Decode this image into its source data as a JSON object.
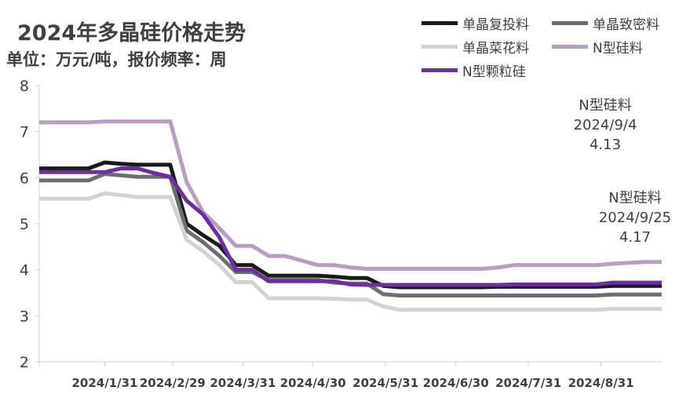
{
  "chart_data": {
    "type": "line",
    "title": "2024年多晶硅价格走势",
    "subtitle": "单位：万元/吨，报价频率：周",
    "ylim": [
      2,
      8
    ],
    "yticks": [
      2,
      3,
      4,
      5,
      6,
      7,
      8
    ],
    "x": [
      "2024/1/3",
      "2024/1/10",
      "2024/1/17",
      "2024/1/24",
      "2024/1/31",
      "2024/2/7",
      "2024/2/14",
      "2024/2/21",
      "2024/2/28",
      "2024/3/6",
      "2024/3/13",
      "2024/3/20",
      "2024/3/27",
      "2024/4/3",
      "2024/4/10",
      "2024/4/17",
      "2024/4/24",
      "2024/5/1",
      "2024/5/8",
      "2024/5/15",
      "2024/5/22",
      "2024/5/29",
      "2024/6/5",
      "2024/6/12",
      "2024/6/19",
      "2024/6/26",
      "2024/7/3",
      "2024/7/10",
      "2024/7/17",
      "2024/7/24",
      "2024/7/31",
      "2024/8/7",
      "2024/8/14",
      "2024/8/21",
      "2024/8/28",
      "2024/9/4",
      "2024/9/11",
      "2024/9/18",
      "2024/9/25"
    ],
    "xtick_labels": [
      "2024/1/31",
      "2024/2/29",
      "2024/3/31",
      "2024/4/30",
      "2024/5/31",
      "2024/6/30",
      "2024/7/31",
      "2024/8/31"
    ],
    "xtick_positions": [
      4,
      8.14,
      12.43,
      16.71,
      21.14,
      25.43,
      29.86,
      34.29
    ],
    "series": [
      {
        "name": "单晶复投料",
        "color": "#1a1a1a",
        "values": [
          6.2,
          6.2,
          6.2,
          6.2,
          6.33,
          6.3,
          6.28,
          6.28,
          6.28,
          5.0,
          4.75,
          4.52,
          4.1,
          4.1,
          3.87,
          3.87,
          3.87,
          3.87,
          3.85,
          3.82,
          3.82,
          3.65,
          3.62,
          3.62,
          3.62,
          3.62,
          3.62,
          3.62,
          3.63,
          3.63,
          3.63,
          3.63,
          3.63,
          3.63,
          3.63,
          3.65,
          3.65,
          3.65,
          3.65
        ]
      },
      {
        "name": "单晶致密料",
        "color": "#6e6e6e",
        "values": [
          5.94,
          5.94,
          5.94,
          5.94,
          6.08,
          6.05,
          6.02,
          6.02,
          6.02,
          4.85,
          4.6,
          4.3,
          3.95,
          3.95,
          3.78,
          3.78,
          3.78,
          3.78,
          3.72,
          3.7,
          3.7,
          3.47,
          3.44,
          3.44,
          3.44,
          3.44,
          3.44,
          3.44,
          3.44,
          3.44,
          3.44,
          3.44,
          3.44,
          3.44,
          3.44,
          3.46,
          3.46,
          3.46,
          3.46
        ]
      },
      {
        "name": "单晶菜花料",
        "color": "#d2d2d2",
        "values": [
          5.54,
          5.54,
          5.54,
          5.54,
          5.66,
          5.62,
          5.58,
          5.58,
          5.58,
          4.65,
          4.4,
          4.1,
          3.73,
          3.73,
          3.38,
          3.38,
          3.38,
          3.38,
          3.37,
          3.35,
          3.35,
          3.2,
          3.13,
          3.13,
          3.13,
          3.13,
          3.13,
          3.13,
          3.13,
          3.13,
          3.13,
          3.13,
          3.13,
          3.13,
          3.13,
          3.15,
          3.15,
          3.15,
          3.15
        ]
      },
      {
        "name": "N型硅料",
        "color": "#b79dc0",
        "values": [
          7.2,
          7.2,
          7.2,
          7.2,
          7.22,
          7.22,
          7.22,
          7.22,
          7.22,
          5.9,
          5.25,
          4.9,
          4.52,
          4.52,
          4.3,
          4.3,
          4.2,
          4.1,
          4.1,
          4.05,
          4.02,
          4.02,
          4.02,
          4.02,
          4.02,
          4.02,
          4.02,
          4.02,
          4.05,
          4.1,
          4.1,
          4.1,
          4.1,
          4.1,
          4.1,
          4.13,
          4.15,
          4.17,
          4.17
        ]
      },
      {
        "name": "N型颗粒硅",
        "color": "#6d2fa0",
        "values": [
          6.12,
          6.12,
          6.12,
          6.12,
          6.12,
          6.2,
          6.2,
          6.1,
          6.02,
          5.5,
          5.2,
          4.7,
          4.0,
          4.0,
          3.75,
          3.75,
          3.75,
          3.75,
          3.75,
          3.68,
          3.67,
          3.67,
          3.67,
          3.67,
          3.67,
          3.67,
          3.67,
          3.67,
          3.67,
          3.68,
          3.68,
          3.68,
          3.68,
          3.68,
          3.68,
          3.72,
          3.72,
          3.72,
          3.72
        ]
      }
    ],
    "annotations": [
      {
        "lines": [
          "N型硅料",
          "2024/9/4",
          "4.13"
        ]
      },
      {
        "lines": [
          "N型硅料",
          "2024/9/25",
          "4.17"
        ]
      }
    ],
    "grid": false,
    "legend_position": "top-right"
  }
}
